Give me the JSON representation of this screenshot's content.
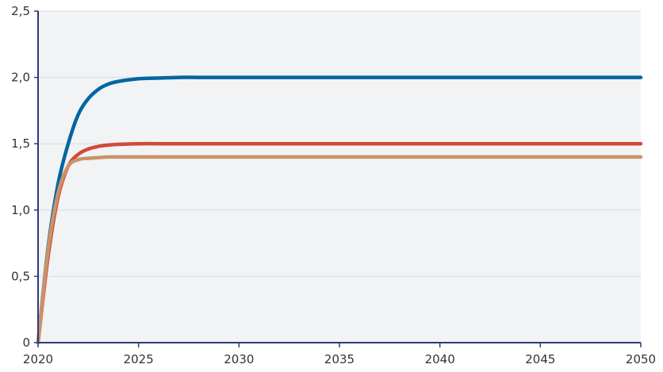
{
  "chart_data": {
    "type": "line",
    "title": "",
    "xlabel": "",
    "ylabel": "",
    "xlim": [
      2020,
      2050
    ],
    "ylim": [
      0,
      2.5
    ],
    "x_ticks": [
      2020,
      2025,
      2030,
      2035,
      2040,
      2045,
      2050
    ],
    "y_ticks": [
      0,
      0.5,
      1.0,
      1.5,
      2.0,
      2.5
    ],
    "x_tick_labels": [
      "2020",
      "2025",
      "2030",
      "2035",
      "2040",
      "2045",
      "2050"
    ],
    "y_tick_labels": [
      "0",
      "0,5",
      "1,0",
      "1,5",
      "2,0",
      "2,5"
    ],
    "grid": "horizontal",
    "legend": "none",
    "colors": {
      "plot_background": "#f2f3f5",
      "axis": "#2e3a7c",
      "grid": "#d9dbe0"
    },
    "series": [
      {
        "color": "#0066a1",
        "x": [
          2020,
          2020.5,
          2021,
          2021.5,
          2022,
          2022.5,
          2023,
          2023.5,
          2024,
          2025,
          2026,
          2027,
          2028,
          2030,
          2035,
          2040,
          2045,
          2050
        ],
        "values": [
          0,
          0.72,
          1.2,
          1.5,
          1.72,
          1.84,
          1.91,
          1.95,
          1.97,
          1.99,
          1.995,
          2.0,
          2.0,
          2.0,
          2.0,
          2.0,
          2.0,
          2.0
        ]
      },
      {
        "color": "#d04a3a",
        "x": [
          2020,
          2020.5,
          2021,
          2021.5,
          2022,
          2022.5,
          2023,
          2023.5,
          2024,
          2025,
          2026,
          2027,
          2030,
          2035,
          2040,
          2045,
          2050
        ],
        "values": [
          0,
          0.65,
          1.1,
          1.33,
          1.42,
          1.46,
          1.48,
          1.49,
          1.495,
          1.5,
          1.5,
          1.5,
          1.5,
          1.5,
          1.5,
          1.5,
          1.5
        ]
      },
      {
        "color": "#c9936a",
        "x": [
          2020,
          2020.5,
          2021,
          2021.5,
          2022,
          2022.5,
          2023,
          2023.5,
          2024,
          2025,
          2026,
          2030,
          2035,
          2040,
          2045,
          2050
        ],
        "values": [
          0,
          0.7,
          1.13,
          1.33,
          1.38,
          1.39,
          1.395,
          1.4,
          1.4,
          1.4,
          1.4,
          1.4,
          1.4,
          1.4,
          1.4,
          1.4
        ]
      }
    ]
  }
}
